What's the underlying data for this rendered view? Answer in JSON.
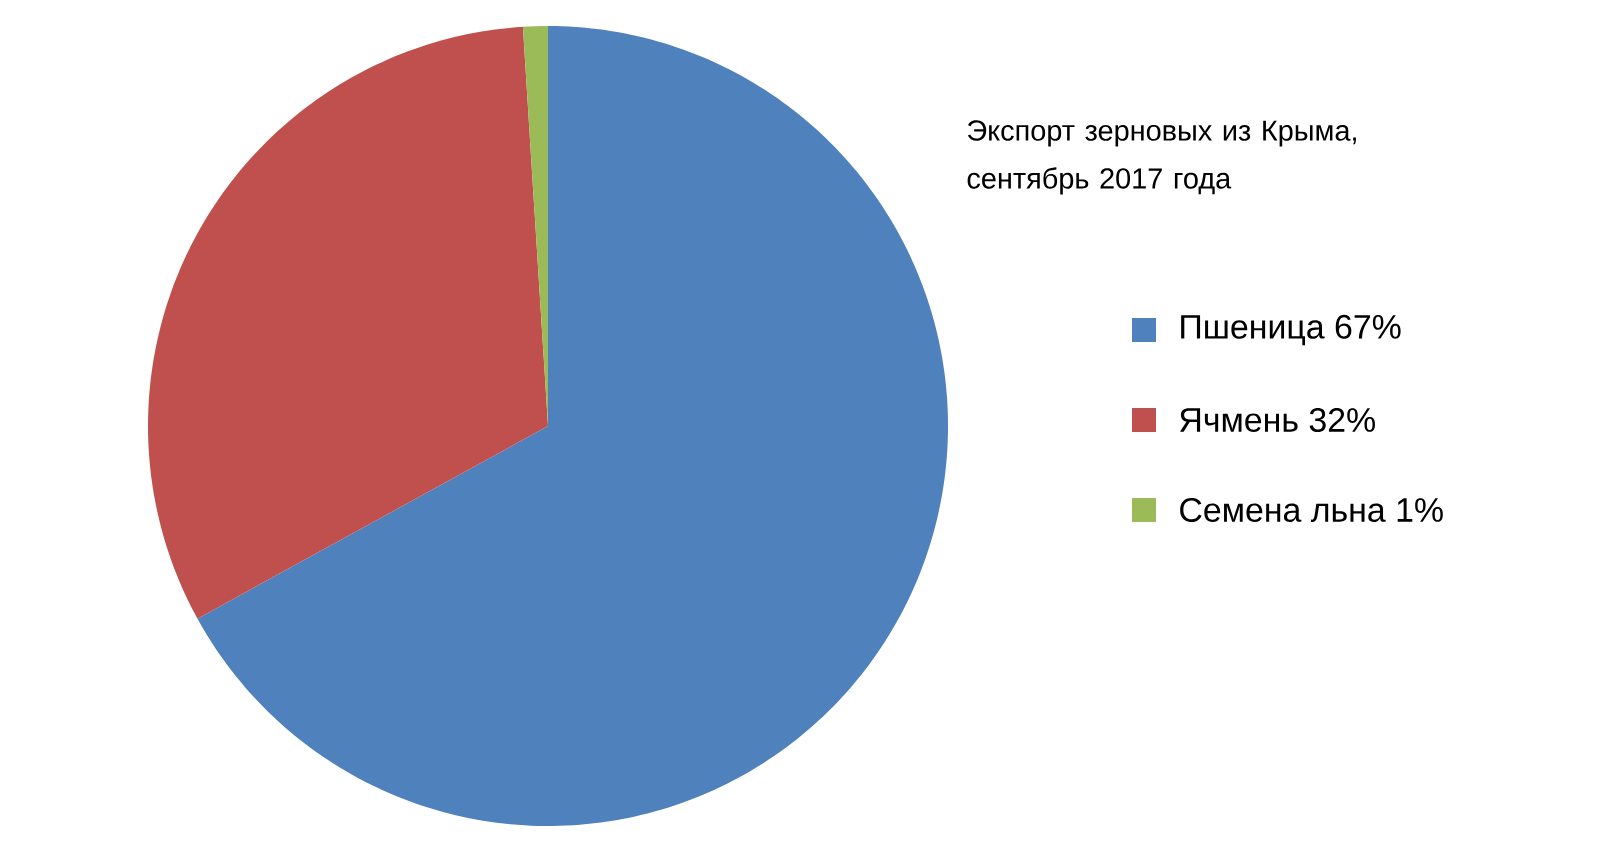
{
  "chart_data": {
    "type": "pie",
    "title": "Экспорт зерновых из Крыма, сентябрь 2017 года",
    "categories": [
      "Пшеница 67%",
      "Ячмень 32%",
      "Семена льна 1%"
    ],
    "values": [
      67,
      32,
      1
    ],
    "colors": [
      "#4f81bd",
      "#c0504d",
      "#9bbb59"
    ],
    "legend": "right"
  }
}
